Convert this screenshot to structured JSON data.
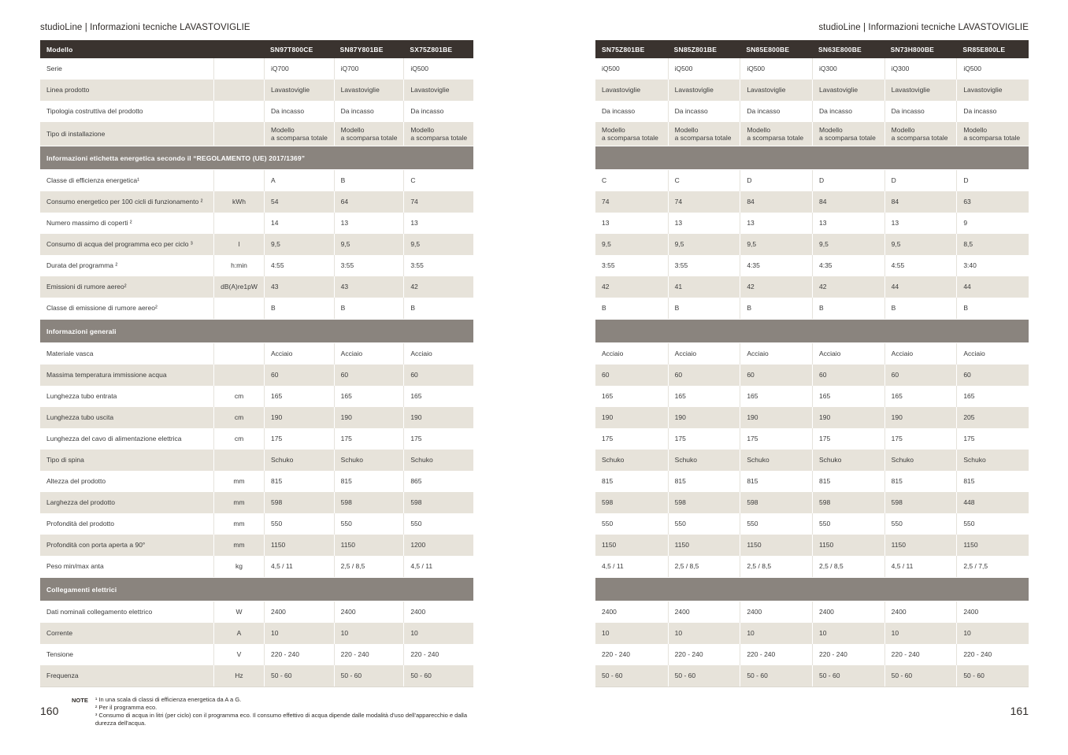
{
  "left_page": {
    "header": "studioLine | Informazioni tecniche LAVASTOVIGLIE",
    "page_number": "160",
    "table_header_label": "Modello",
    "models": [
      "SN97T800CE",
      "SN87Y801BE",
      "SX75Z801BE"
    ],
    "notes_label": "NOTE",
    "notes": [
      "¹ In una scala di classi di efficienza energetica da A a G.",
      "² Per il programma eco.",
      "³ Consumo di acqua in litri (per ciclo) con il programma eco. Il consumo effettivo di acqua dipende dalle modalità d'uso dell'apparecchio e dalla durezza dell'acqua."
    ]
  },
  "right_page": {
    "header": "studioLine | Informazioni tecniche LAVASTOVIGLIE",
    "page_number": "161",
    "models": [
      "SN75Z801BE",
      "SN85Z801BE",
      "SN85E800BE",
      "SN63E800BE",
      "SN73H800BE",
      "SR85E800LE"
    ]
  },
  "colors": {
    "header_bar": "#3a332f",
    "section_bar": "#8a847e",
    "stripe_beige": "#e7e3da"
  },
  "rows": [
    {
      "kind": "row",
      "label": "Serie",
      "unit": "",
      "left": [
        "iQ700",
        "iQ700",
        "iQ500"
      ],
      "right": [
        "iQ500",
        "iQ500",
        "iQ500",
        "iQ300",
        "iQ300",
        "iQ500"
      ]
    },
    {
      "kind": "row",
      "label": "Linea prodotto",
      "unit": "",
      "left": [
        "Lavastoviglie",
        "Lavastoviglie",
        "Lavastoviglie"
      ],
      "right": [
        "Lavastoviglie",
        "Lavastoviglie",
        "Lavastoviglie",
        "Lavastoviglie",
        "Lavastoviglie",
        "Lavastoviglie"
      ]
    },
    {
      "kind": "row",
      "label": "Tipologia costruttiva del prodotto",
      "unit": "",
      "left": [
        "Da incasso",
        "Da incasso",
        "Da incasso"
      ],
      "right": [
        "Da incasso",
        "Da incasso",
        "Da incasso",
        "Da incasso",
        "Da incasso",
        "Da incasso"
      ]
    },
    {
      "kind": "row",
      "tall": true,
      "label": "Tipo di installazione",
      "unit": "",
      "left": [
        "Modello\na scomparsa totale",
        "Modello\na scomparsa totale",
        "Modello\na scomparsa totale"
      ],
      "right": [
        "Modello\na scomparsa totale",
        "Modello\na scomparsa totale",
        "Modello\na scomparsa totale",
        "Modello\na scomparsa totale",
        "Modello\na scomparsa totale",
        "Modello\na scomparsa totale"
      ]
    },
    {
      "kind": "section",
      "label": "Informazioni etichetta energetica secondo il “REGOLAMENTO (UE) 2017/1369”"
    },
    {
      "kind": "row",
      "label": "Classe di efficienza energetica¹",
      "unit": "",
      "left": [
        "A",
        "B",
        "C"
      ],
      "right": [
        "C",
        "C",
        "D",
        "D",
        "D",
        "D"
      ]
    },
    {
      "kind": "row",
      "label": "Consumo energetico per 100 cicli di funzionamento ²",
      "unit": "kWh",
      "left": [
        "54",
        "64",
        "74"
      ],
      "right": [
        "74",
        "74",
        "84",
        "84",
        "84",
        "63"
      ]
    },
    {
      "kind": "row",
      "label": "Numero massimo di coperti ²",
      "unit": "",
      "left": [
        "14",
        "13",
        "13"
      ],
      "right": [
        "13",
        "13",
        "13",
        "13",
        "13",
        "9"
      ]
    },
    {
      "kind": "row",
      "label": "Consumo di acqua del programma eco per ciclo ³",
      "unit": "l",
      "left": [
        "9,5",
        "9,5",
        "9,5"
      ],
      "right": [
        "9,5",
        "9,5",
        "9,5",
        "9,5",
        "9,5",
        "8,5"
      ]
    },
    {
      "kind": "row",
      "label": "Durata del programma ²",
      "unit": "h:min",
      "left": [
        "4:55",
        "3:55",
        "3:55"
      ],
      "right": [
        "3:55",
        "3:55",
        "4:35",
        "4:35",
        "4:55",
        "3:40"
      ]
    },
    {
      "kind": "row",
      "label": "Emissioni di rumore aereo²",
      "unit": "dB(A)re1pW",
      "left": [
        "43",
        "43",
        "42"
      ],
      "right": [
        "42",
        "41",
        "42",
        "42",
        "44",
        "44"
      ]
    },
    {
      "kind": "row",
      "label": "Classe di emissione di rumore aereo²",
      "unit": "",
      "left": [
        "B",
        "B",
        "B"
      ],
      "right": [
        "B",
        "B",
        "B",
        "B",
        "B",
        "B"
      ]
    },
    {
      "kind": "section",
      "label": "Informazioni generali"
    },
    {
      "kind": "row",
      "label": "Materiale vasca",
      "unit": "",
      "left": [
        "Acciaio",
        "Acciaio",
        "Acciaio"
      ],
      "right": [
        "Acciaio",
        "Acciaio",
        "Acciaio",
        "Acciaio",
        "Acciaio",
        "Acciaio"
      ]
    },
    {
      "kind": "row",
      "label": "Massima temperatura immissione acqua",
      "unit": "",
      "left": [
        "60",
        "60",
        "60"
      ],
      "right": [
        "60",
        "60",
        "60",
        "60",
        "60",
        "60"
      ]
    },
    {
      "kind": "row",
      "label": "Lunghezza tubo entrata",
      "unit": "cm",
      "left": [
        "165",
        "165",
        "165"
      ],
      "right": [
        "165",
        "165",
        "165",
        "165",
        "165",
        "165"
      ]
    },
    {
      "kind": "row",
      "label": "Lunghezza tubo uscita",
      "unit": "cm",
      "left": [
        "190",
        "190",
        "190"
      ],
      "right": [
        "190",
        "190",
        "190",
        "190",
        "190",
        "205"
      ]
    },
    {
      "kind": "row",
      "label": "Lunghezza del cavo di alimentazione elettrica",
      "unit": "cm",
      "left": [
        "175",
        "175",
        "175"
      ],
      "right": [
        "175",
        "175",
        "175",
        "175",
        "175",
        "175"
      ]
    },
    {
      "kind": "row",
      "label": "Tipo di spina",
      "unit": "",
      "left": [
        "Schuko",
        "Schuko",
        "Schuko"
      ],
      "right": [
        "Schuko",
        "Schuko",
        "Schuko",
        "Schuko",
        "Schuko",
        "Schuko"
      ]
    },
    {
      "kind": "row",
      "label": "Altezza del prodotto",
      "unit": "mm",
      "left": [
        "815",
        "815",
        "865"
      ],
      "right": [
        "815",
        "815",
        "815",
        "815",
        "815",
        "815"
      ]
    },
    {
      "kind": "row",
      "label": "Larghezza del prodotto",
      "unit": "mm",
      "left": [
        "598",
        "598",
        "598"
      ],
      "right": [
        "598",
        "598",
        "598",
        "598",
        "598",
        "448"
      ]
    },
    {
      "kind": "row",
      "label": "Profondità del prodotto",
      "unit": "mm",
      "left": [
        "550",
        "550",
        "550"
      ],
      "right": [
        "550",
        "550",
        "550",
        "550",
        "550",
        "550"
      ]
    },
    {
      "kind": "row",
      "label": "Profondità con porta aperta a 90°",
      "unit": "mm",
      "left": [
        "1150",
        "1150",
        "1200"
      ],
      "right": [
        "1150",
        "1150",
        "1150",
        "1150",
        "1150",
        "1150"
      ]
    },
    {
      "kind": "row",
      "label": "Peso min/max anta",
      "unit": "kg",
      "left": [
        "4,5 / 11",
        "2,5 / 8,5",
        "4,5 / 11"
      ],
      "right": [
        "4,5 / 11",
        "2,5 / 8,5",
        "2,5 / 8,5",
        "2,5 / 8,5",
        "4,5 / 11",
        "2,5 / 7,5"
      ]
    },
    {
      "kind": "section",
      "label": "Collegamenti elettrici"
    },
    {
      "kind": "row",
      "label": "Dati nominali collegamento elettrico",
      "unit": "W",
      "left": [
        "2400",
        "2400",
        "2400"
      ],
      "right": [
        "2400",
        "2400",
        "2400",
        "2400",
        "2400",
        "2400"
      ]
    },
    {
      "kind": "row",
      "label": "Corrente",
      "unit": "A",
      "left": [
        "10",
        "10",
        "10"
      ],
      "right": [
        "10",
        "10",
        "10",
        "10",
        "10",
        "10"
      ]
    },
    {
      "kind": "row",
      "label": "Tensione",
      "unit": "V",
      "left": [
        "220 - 240",
        "220 - 240",
        "220 - 240"
      ],
      "right": [
        "220 - 240",
        "220 - 240",
        "220 - 240",
        "220 - 240",
        "220 - 240",
        "220 - 240"
      ]
    },
    {
      "kind": "row",
      "label": "Frequenza",
      "unit": "Hz",
      "left": [
        "50 - 60",
        "50 - 60",
        "50 - 60"
      ],
      "right": [
        "50 - 60",
        "50 - 60",
        "50 - 60",
        "50 - 60",
        "50 - 60",
        "50 - 60"
      ]
    }
  ]
}
